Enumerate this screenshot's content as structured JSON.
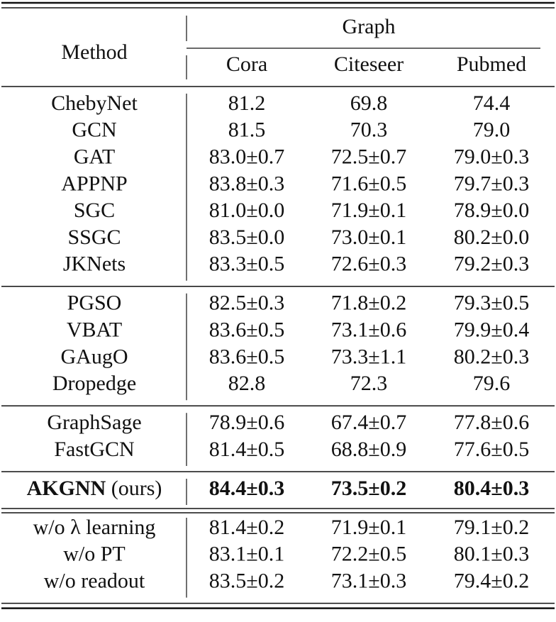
{
  "header": {
    "method": "Method",
    "group": "Graph",
    "columns": [
      "Cora",
      "Citeseer",
      "Pubmed"
    ]
  },
  "groups": [
    {
      "rows": [
        {
          "method": "ChebyNet",
          "values": [
            "81.2",
            "69.8",
            "74.4"
          ]
        },
        {
          "method": "GCN",
          "values": [
            "81.5",
            "70.3",
            "79.0"
          ]
        },
        {
          "method": "GAT",
          "values": [
            "83.0±0.7",
            "72.5±0.7",
            "79.0±0.3"
          ]
        },
        {
          "method": "APPNP",
          "values": [
            "83.8±0.3",
            "71.6±0.5",
            "79.7±0.3"
          ]
        },
        {
          "method": "SGC",
          "values": [
            "81.0±0.0",
            "71.9±0.1",
            "78.9±0.0"
          ]
        },
        {
          "method": "SSGC",
          "values": [
            "83.5±0.0",
            "73.0±0.1",
            "80.2±0.0"
          ]
        },
        {
          "method": "JKNets",
          "values": [
            "83.3±0.5",
            "72.6±0.3",
            "79.2±0.3"
          ]
        }
      ]
    },
    {
      "rows": [
        {
          "method": "PGSO",
          "values": [
            "82.5±0.3",
            "71.8±0.2",
            "79.3±0.5"
          ]
        },
        {
          "method": "VBAT",
          "values": [
            "83.6±0.5",
            "73.1±0.6",
            "79.9±0.4"
          ]
        },
        {
          "method": "GAugO",
          "values": [
            "83.6±0.5",
            "73.3±1.1",
            "80.2±0.3"
          ]
        },
        {
          "method": "Dropedge",
          "values": [
            "82.8",
            "72.3",
            "79.6"
          ]
        }
      ]
    },
    {
      "rows": [
        {
          "method": "GraphSage",
          "values": [
            "78.9±0.6",
            "67.4±0.7",
            "77.8±0.6"
          ]
        },
        {
          "method": "FastGCN",
          "values": [
            "81.4±0.5",
            "68.8±0.9",
            "77.6±0.5"
          ]
        }
      ]
    },
    {
      "rows": [
        {
          "method": "AKGNN",
          "note": "(ours)",
          "bold": true,
          "values": [
            "84.4±0.3",
            "73.5±0.2",
            "80.4±0.3"
          ]
        }
      ]
    },
    {
      "rows": [
        {
          "method": "w/o λ learning",
          "values": [
            "81.4±0.2",
            "71.9±0.1",
            "79.1±0.2"
          ]
        },
        {
          "method": "w/o PT",
          "values": [
            "83.1±0.1",
            "72.2±0.5",
            "80.1±0.3"
          ]
        },
        {
          "method": "w/o readout",
          "values": [
            "83.5±0.2",
            "73.1±0.3",
            "79.4±0.2"
          ]
        }
      ]
    }
  ]
}
